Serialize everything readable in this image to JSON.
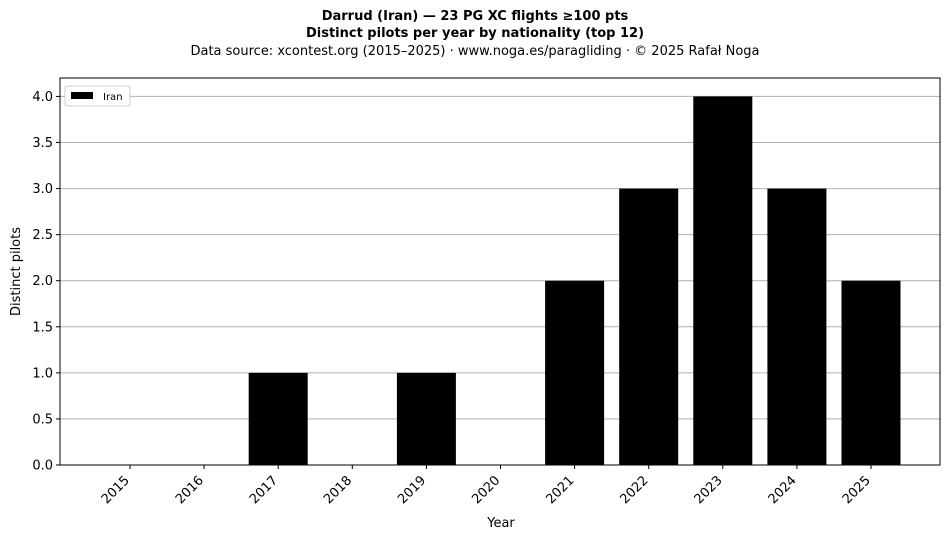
{
  "header": {
    "title": "Darrud (Iran)  —  23 PG XC flights ≥100 pts",
    "subtitle": "Distinct pilots per year by nationality (top 12)",
    "source": "Data source: xcontest.org (2015–2025)  ·  www.noga.es/paragliding  ·  © 2025 Rafał Noga"
  },
  "chart_data": {
    "type": "bar",
    "title": "Darrud (Iran)  —  23 PG XC flights ≥100 pts",
    "subtitle": "Distinct pilots per year by nationality (top 12)",
    "xlabel": "Year",
    "ylabel": "Distinct pilots",
    "categories": [
      "2015",
      "2016",
      "2017",
      "2018",
      "2019",
      "2020",
      "2021",
      "2022",
      "2023",
      "2024",
      "2025"
    ],
    "series": [
      {
        "name": "Iran",
        "values": [
          0,
          0,
          1,
          0,
          1,
          0,
          2,
          3,
          4,
          3,
          2
        ],
        "color": "#000000"
      }
    ],
    "ylim": [
      0,
      4.2
    ],
    "yticks": [
      "0.0",
      "0.5",
      "1.0",
      "1.5",
      "2.0",
      "2.5",
      "3.0",
      "3.5",
      "4.0"
    ],
    "grid": "horizontal",
    "legend_position": "top-left"
  }
}
